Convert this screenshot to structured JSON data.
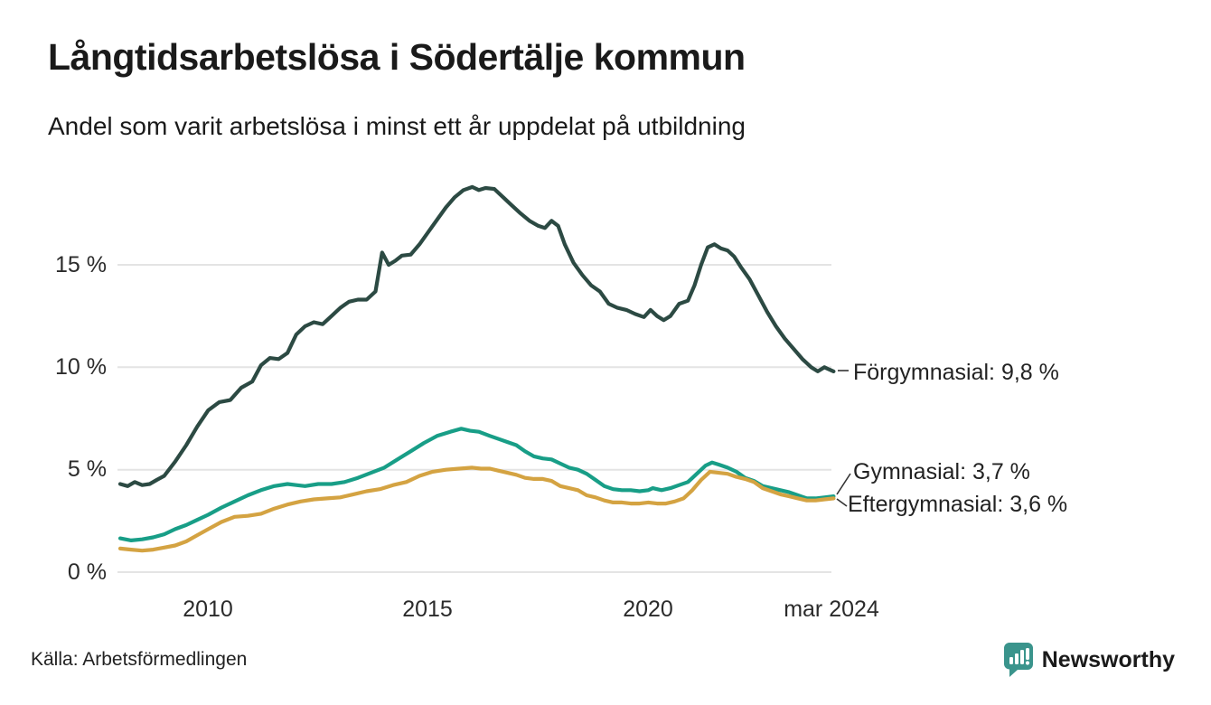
{
  "header": {
    "title": "Långtidsarbetslösa i Södertälje kommun",
    "subtitle": "Andel som varit arbetslösa i minst ett år uppdelat på utbildning"
  },
  "footer": {
    "source": "Källa: Arbetsförmedlingen",
    "brand_name": "Newsworthy",
    "brand_color": "#3a948c"
  },
  "chart_data": {
    "type": "line",
    "title": "Långtidsarbetslösa i Södertälje kommun",
    "subtitle": "Andel som varit arbetslösa i minst ett år uppdelat på utbildning",
    "x_unit": "time, decimal years (monthly series)",
    "y_unit": "percent",
    "xlim": [
      2008.0,
      2024.3
    ],
    "ylim": [
      0,
      19.5
    ],
    "grid": "horizontal",
    "grid_color": "#e4e4e4",
    "legend_position": "end-of-line labels",
    "y_ticks": [
      {
        "value": 15,
        "label": "15 %"
      },
      {
        "value": 10,
        "label": "10 %"
      },
      {
        "value": 5,
        "label": "5 %"
      },
      {
        "value": 0,
        "label": "0 %"
      }
    ],
    "x_ticks": [
      {
        "value": 2010,
        "label": "2010"
      },
      {
        "value": 2015,
        "label": "2015"
      },
      {
        "value": 2020,
        "label": "2020"
      },
      {
        "value": 2024.21,
        "label": "mar 2024"
      }
    ],
    "series": [
      {
        "id": "forgymnasial",
        "name": "Förgymnasial",
        "end_label": "Förgymnasial: 9,8 %",
        "end_value": 9.8,
        "color": "#2c4a43",
        "points": [
          [
            2008.0,
            4.3
          ],
          [
            2008.17,
            4.2
          ],
          [
            2008.33,
            4.4
          ],
          [
            2008.5,
            4.25
          ],
          [
            2008.67,
            4.3
          ],
          [
            2008.83,
            4.5
          ],
          [
            2009.0,
            4.7
          ],
          [
            2009.25,
            5.4
          ],
          [
            2009.5,
            6.2
          ],
          [
            2009.75,
            7.1
          ],
          [
            2010.0,
            7.9
          ],
          [
            2010.25,
            8.3
          ],
          [
            2010.5,
            8.4
          ],
          [
            2010.75,
            9.0
          ],
          [
            2011.0,
            9.3
          ],
          [
            2011.2,
            10.1
          ],
          [
            2011.4,
            10.45
          ],
          [
            2011.6,
            10.4
          ],
          [
            2011.8,
            10.7
          ],
          [
            2012.0,
            11.6
          ],
          [
            2012.2,
            12.0
          ],
          [
            2012.4,
            12.2
          ],
          [
            2012.6,
            12.1
          ],
          [
            2012.8,
            12.5
          ],
          [
            2013.0,
            12.9
          ],
          [
            2013.2,
            13.2
          ],
          [
            2013.4,
            13.3
          ],
          [
            2013.6,
            13.3
          ],
          [
            2013.8,
            13.7
          ],
          [
            2013.95,
            15.6
          ],
          [
            2014.1,
            15.0
          ],
          [
            2014.25,
            15.2
          ],
          [
            2014.4,
            15.45
          ],
          [
            2014.6,
            15.5
          ],
          [
            2014.8,
            16.0
          ],
          [
            2015.0,
            16.6
          ],
          [
            2015.2,
            17.2
          ],
          [
            2015.4,
            17.8
          ],
          [
            2015.6,
            18.3
          ],
          [
            2015.8,
            18.65
          ],
          [
            2016.0,
            18.8
          ],
          [
            2016.15,
            18.65
          ],
          [
            2016.3,
            18.75
          ],
          [
            2016.5,
            18.7
          ],
          [
            2016.7,
            18.3
          ],
          [
            2016.9,
            17.9
          ],
          [
            2017.1,
            17.5
          ],
          [
            2017.3,
            17.15
          ],
          [
            2017.5,
            16.9
          ],
          [
            2017.65,
            16.8
          ],
          [
            2017.8,
            17.15
          ],
          [
            2017.95,
            16.9
          ],
          [
            2018.1,
            16.0
          ],
          [
            2018.3,
            15.1
          ],
          [
            2018.5,
            14.5
          ],
          [
            2018.7,
            14.0
          ],
          [
            2018.9,
            13.7
          ],
          [
            2019.1,
            13.1
          ],
          [
            2019.3,
            12.9
          ],
          [
            2019.5,
            12.8
          ],
          [
            2019.7,
            12.6
          ],
          [
            2019.9,
            12.45
          ],
          [
            2020.05,
            12.8
          ],
          [
            2020.2,
            12.5
          ],
          [
            2020.35,
            12.3
          ],
          [
            2020.5,
            12.5
          ],
          [
            2020.7,
            13.1
          ],
          [
            2020.9,
            13.25
          ],
          [
            2021.05,
            14.0
          ],
          [
            2021.2,
            15.0
          ],
          [
            2021.35,
            15.85
          ],
          [
            2021.5,
            16.0
          ],
          [
            2021.65,
            15.8
          ],
          [
            2021.8,
            15.7
          ],
          [
            2021.95,
            15.4
          ],
          [
            2022.1,
            14.9
          ],
          [
            2022.3,
            14.3
          ],
          [
            2022.5,
            13.5
          ],
          [
            2022.7,
            12.7
          ],
          [
            2022.9,
            12.0
          ],
          [
            2023.1,
            11.4
          ],
          [
            2023.3,
            10.9
          ],
          [
            2023.5,
            10.4
          ],
          [
            2023.7,
            10.0
          ],
          [
            2023.85,
            9.8
          ],
          [
            2024.0,
            10.0
          ],
          [
            2024.1,
            9.9
          ],
          [
            2024.21,
            9.8
          ]
        ]
      },
      {
        "id": "gymnasial",
        "name": "Gymnasial",
        "end_label": "Gymnasial: 3,7 %",
        "end_value": 3.7,
        "color": "#189e87",
        "points": [
          [
            2008.0,
            1.65
          ],
          [
            2008.25,
            1.55
          ],
          [
            2008.5,
            1.6
          ],
          [
            2008.75,
            1.7
          ],
          [
            2009.0,
            1.85
          ],
          [
            2009.25,
            2.1
          ],
          [
            2009.5,
            2.3
          ],
          [
            2009.75,
            2.55
          ],
          [
            2010.0,
            2.8
          ],
          [
            2010.3,
            3.15
          ],
          [
            2010.6,
            3.45
          ],
          [
            2010.9,
            3.75
          ],
          [
            2011.2,
            4.0
          ],
          [
            2011.5,
            4.2
          ],
          [
            2011.8,
            4.3
          ],
          [
            2012.0,
            4.25
          ],
          [
            2012.2,
            4.2
          ],
          [
            2012.5,
            4.3
          ],
          [
            2012.8,
            4.3
          ],
          [
            2013.1,
            4.4
          ],
          [
            2013.4,
            4.6
          ],
          [
            2013.7,
            4.85
          ],
          [
            2014.0,
            5.1
          ],
          [
            2014.3,
            5.5
          ],
          [
            2014.6,
            5.9
          ],
          [
            2014.9,
            6.3
          ],
          [
            2015.2,
            6.65
          ],
          [
            2015.5,
            6.85
          ],
          [
            2015.75,
            7.0
          ],
          [
            2015.95,
            6.9
          ],
          [
            2016.15,
            6.85
          ],
          [
            2016.4,
            6.65
          ],
          [
            2016.6,
            6.5
          ],
          [
            2016.8,
            6.35
          ],
          [
            2017.0,
            6.2
          ],
          [
            2017.2,
            5.9
          ],
          [
            2017.4,
            5.65
          ],
          [
            2017.6,
            5.55
          ],
          [
            2017.8,
            5.5
          ],
          [
            2018.0,
            5.3
          ],
          [
            2018.2,
            5.1
          ],
          [
            2018.4,
            5.0
          ],
          [
            2018.6,
            4.8
          ],
          [
            2018.8,
            4.5
          ],
          [
            2019.0,
            4.2
          ],
          [
            2019.2,
            4.05
          ],
          [
            2019.4,
            4.0
          ],
          [
            2019.6,
            4.0
          ],
          [
            2019.8,
            3.95
          ],
          [
            2020.0,
            4.0
          ],
          [
            2020.1,
            4.1
          ],
          [
            2020.3,
            4.0
          ],
          [
            2020.5,
            4.1
          ],
          [
            2020.7,
            4.25
          ],
          [
            2020.9,
            4.4
          ],
          [
            2021.1,
            4.8
          ],
          [
            2021.3,
            5.2
          ],
          [
            2021.45,
            5.35
          ],
          [
            2021.6,
            5.25
          ],
          [
            2021.8,
            5.1
          ],
          [
            2022.0,
            4.9
          ],
          [
            2022.2,
            4.6
          ],
          [
            2022.4,
            4.45
          ],
          [
            2022.6,
            4.2
          ],
          [
            2022.8,
            4.1
          ],
          [
            2023.0,
            4.0
          ],
          [
            2023.2,
            3.9
          ],
          [
            2023.4,
            3.75
          ],
          [
            2023.6,
            3.6
          ],
          [
            2023.8,
            3.6
          ],
          [
            2024.0,
            3.65
          ],
          [
            2024.21,
            3.7
          ]
        ]
      },
      {
        "id": "eftergymnasial",
        "name": "Eftergymnasial",
        "end_label": "Eftergymnasial: 3,6 %",
        "end_value": 3.6,
        "color": "#d4a342",
        "points": [
          [
            2008.0,
            1.15
          ],
          [
            2008.25,
            1.1
          ],
          [
            2008.5,
            1.05
          ],
          [
            2008.75,
            1.1
          ],
          [
            2009.0,
            1.2
          ],
          [
            2009.25,
            1.3
          ],
          [
            2009.5,
            1.5
          ],
          [
            2009.75,
            1.8
          ],
          [
            2010.0,
            2.1
          ],
          [
            2010.3,
            2.45
          ],
          [
            2010.6,
            2.7
          ],
          [
            2010.9,
            2.75
          ],
          [
            2011.2,
            2.85
          ],
          [
            2011.5,
            3.1
          ],
          [
            2011.8,
            3.3
          ],
          [
            2012.1,
            3.45
          ],
          [
            2012.4,
            3.55
          ],
          [
            2012.7,
            3.6
          ],
          [
            2013.0,
            3.65
          ],
          [
            2013.3,
            3.8
          ],
          [
            2013.6,
            3.95
          ],
          [
            2013.9,
            4.05
          ],
          [
            2014.2,
            4.25
          ],
          [
            2014.5,
            4.4
          ],
          [
            2014.8,
            4.7
          ],
          [
            2015.1,
            4.9
          ],
          [
            2015.4,
            5.0
          ],
          [
            2015.7,
            5.05
          ],
          [
            2016.0,
            5.1
          ],
          [
            2016.2,
            5.05
          ],
          [
            2016.4,
            5.05
          ],
          [
            2016.6,
            4.95
          ],
          [
            2016.8,
            4.85
          ],
          [
            2017.0,
            4.75
          ],
          [
            2017.2,
            4.6
          ],
          [
            2017.4,
            4.55
          ],
          [
            2017.6,
            4.55
          ],
          [
            2017.8,
            4.45
          ],
          [
            2018.0,
            4.2
          ],
          [
            2018.2,
            4.1
          ],
          [
            2018.4,
            4.0
          ],
          [
            2018.6,
            3.75
          ],
          [
            2018.8,
            3.65
          ],
          [
            2019.0,
            3.5
          ],
          [
            2019.2,
            3.4
          ],
          [
            2019.4,
            3.4
          ],
          [
            2019.6,
            3.35
          ],
          [
            2019.8,
            3.35
          ],
          [
            2020.0,
            3.4
          ],
          [
            2020.2,
            3.35
          ],
          [
            2020.4,
            3.35
          ],
          [
            2020.6,
            3.45
          ],
          [
            2020.8,
            3.6
          ],
          [
            2021.0,
            4.0
          ],
          [
            2021.2,
            4.5
          ],
          [
            2021.4,
            4.9
          ],
          [
            2021.6,
            4.85
          ],
          [
            2021.8,
            4.8
          ],
          [
            2022.0,
            4.65
          ],
          [
            2022.2,
            4.55
          ],
          [
            2022.4,
            4.4
          ],
          [
            2022.6,
            4.1
          ],
          [
            2022.8,
            3.95
          ],
          [
            2023.0,
            3.8
          ],
          [
            2023.2,
            3.7
          ],
          [
            2023.4,
            3.6
          ],
          [
            2023.6,
            3.5
          ],
          [
            2023.8,
            3.5
          ],
          [
            2024.0,
            3.55
          ],
          [
            2024.21,
            3.6
          ]
        ]
      }
    ]
  }
}
